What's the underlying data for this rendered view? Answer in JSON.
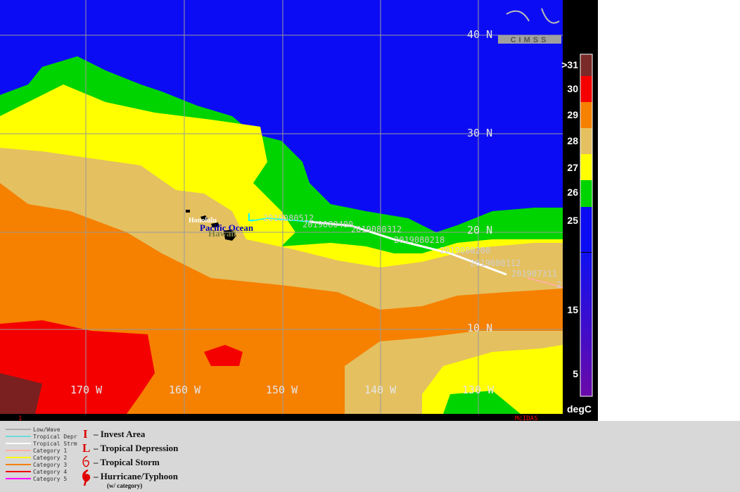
{
  "map": {
    "lat_labels": [
      "40 N",
      "30 N",
      "20 N",
      "10 N"
    ],
    "lon_labels": [
      "170 W",
      "160 W",
      "150 W",
      "140 W",
      "130 W"
    ],
    "places": [
      "Honolulu",
      "Pacific Ocean",
      "Hawaii"
    ],
    "track_labels": [
      "2019080512",
      "2019080400",
      "2019080312",
      "2019080218",
      "2019080200",
      "2019080112",
      "201907311",
      "2"
    ],
    "logo": "CIMSS",
    "colorbar": {
      "labels": [
        ">31",
        "30",
        "29",
        "28",
        "27",
        "26",
        "25",
        "15",
        "5"
      ],
      "unit": "degC"
    },
    "footer": {
      "frame": "1",
      "software": "McIDAS"
    }
  },
  "legend": {
    "lines": [
      "Low/Wave",
      "Tropical Depr",
      "Tropical Strm",
      "Category 1",
      "Category 2",
      "Category 3",
      "Category 4",
      "Category 5"
    ],
    "symbols": [
      {
        "glyph": "I",
        "label": "– Invest Area"
      },
      {
        "glyph": "L",
        "label": "– Tropical Depression"
      },
      {
        "label": "– Tropical Storm"
      },
      {
        "label": "– Hurricane/Typhoon"
      }
    ],
    "note": "(w/ category)"
  }
}
